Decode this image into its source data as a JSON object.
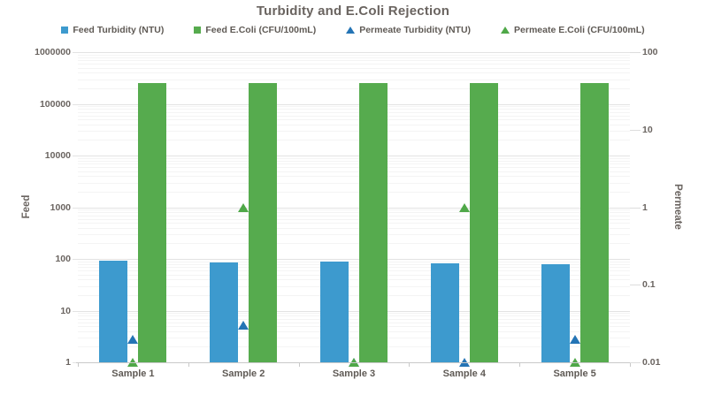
{
  "title": "Turbidity and E.Coli Rejection",
  "legend": {
    "items": [
      {
        "label": "Feed Turbidity (NTU)",
        "marker": "square",
        "color": "#3d9ace"
      },
      {
        "label": "Feed E.Coli (CFU/100mL)",
        "marker": "square",
        "color": "#56ab4e"
      },
      {
        "label": "Permeate Turbidity (NTU)",
        "marker": "triangle",
        "color": "#2474b5"
      },
      {
        "label": "Permeate E.Coli (CFU/100mL)",
        "marker": "triangle",
        "color": "#4fa848"
      }
    ]
  },
  "chart_data": {
    "type": "bar",
    "subtype": "grouped bars with scatter triangle overlay, dual log axes",
    "categories": [
      "Sample 1",
      "Sample 2",
      "Sample 3",
      "Sample 4",
      "Sample 5"
    ],
    "series": [
      {
        "name": "Feed Turbidity (NTU)",
        "render": "bar",
        "axis": "left",
        "color": "#3d9ace",
        "values": [
          92,
          84,
          90,
          82,
          78
        ]
      },
      {
        "name": "Feed E.Coli (CFU/100mL)",
        "render": "bar",
        "axis": "left",
        "color": "#56ab4e",
        "values": [
          250000,
          250000,
          250000,
          250000,
          250000
        ]
      },
      {
        "name": "Permeate Turbidity (NTU)",
        "render": "triangle",
        "axis": "right",
        "color": "#2474b5",
        "values": [
          0.02,
          0.03,
          0.01,
          0.01,
          0.02
        ]
      },
      {
        "name": "Permeate E.Coli (CFU/100mL)",
        "render": "triangle",
        "axis": "right",
        "color": "#4fa848",
        "values": [
          0.01,
          1,
          0.01,
          1,
          0.01
        ]
      }
    ],
    "axes": {
      "left": {
        "label": "Feed",
        "scale": "log",
        "min": 1,
        "max": 1000000,
        "tick_labels": [
          "1000000",
          "100000",
          "10000",
          "1000",
          "100",
          "10",
          "1"
        ]
      },
      "right": {
        "label": "Permeate",
        "scale": "log",
        "min": 0.01,
        "max": 100,
        "tick_labels": [
          "100",
          "10",
          "1",
          "0.1",
          "0.01"
        ]
      }
    },
    "grid": "horizontal log major + minor gridlines",
    "legend_position": "top"
  }
}
